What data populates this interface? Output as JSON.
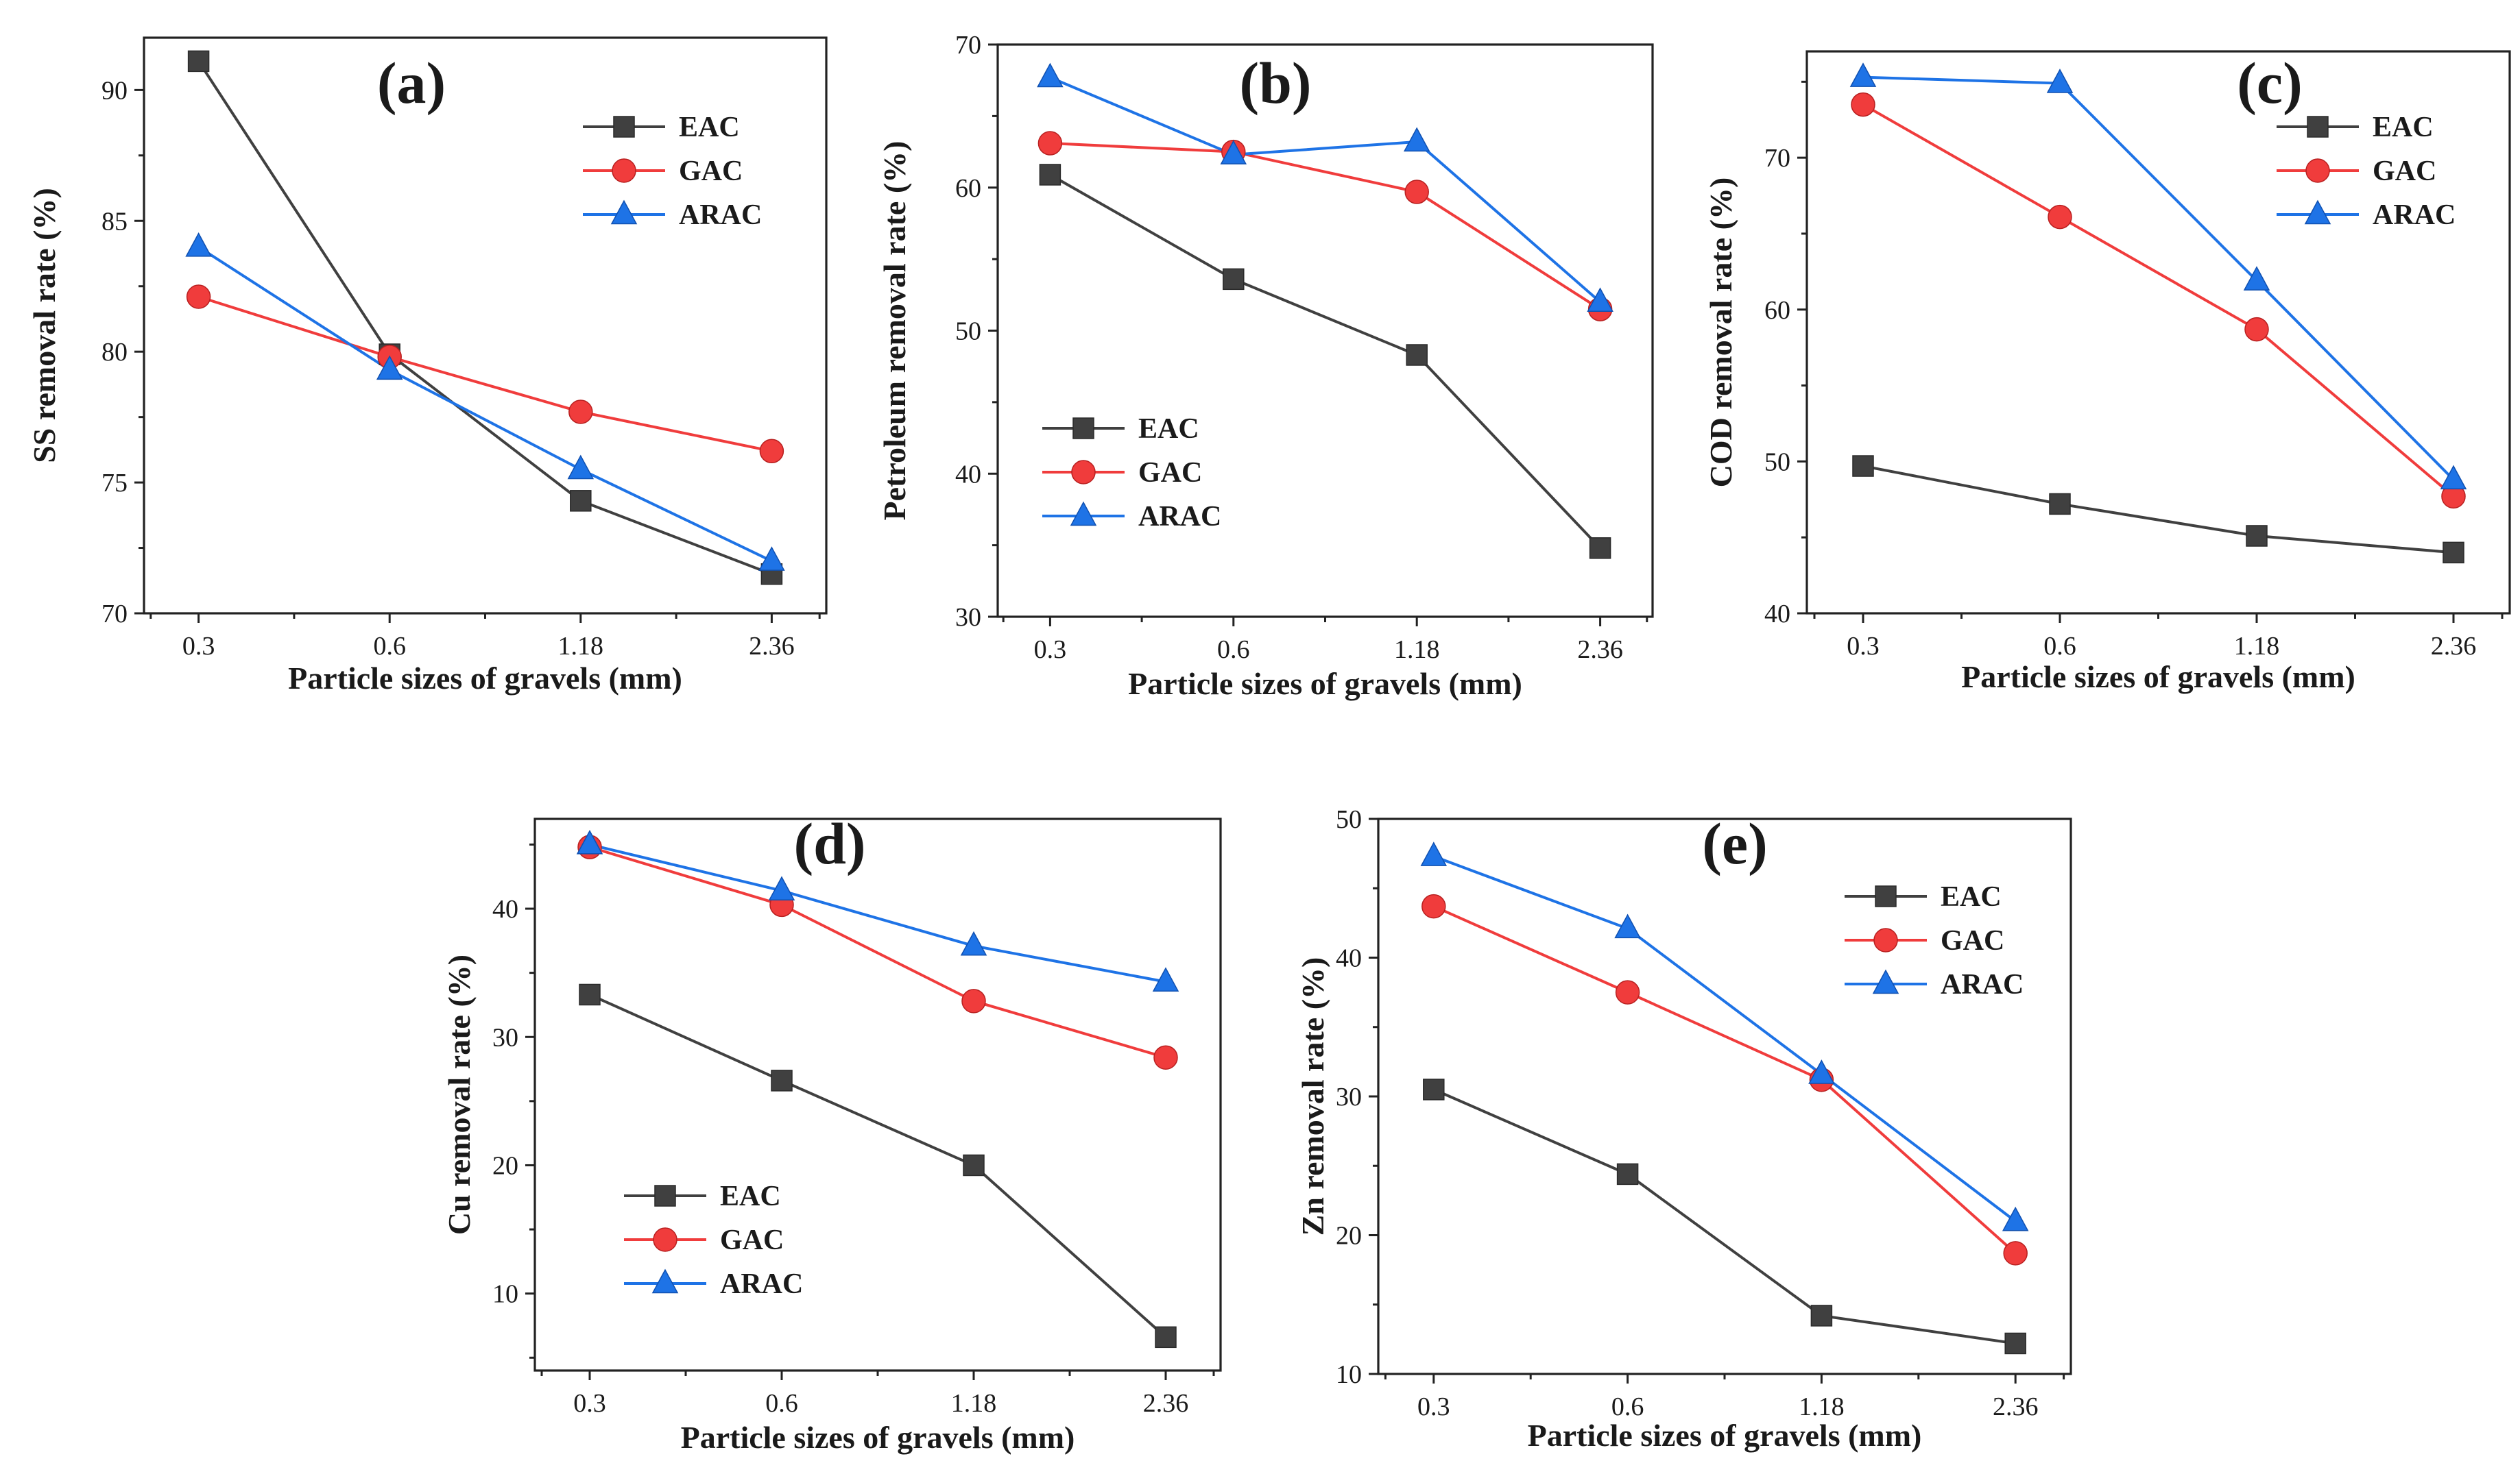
{
  "figure": {
    "colors": {
      "EAC": "#404040",
      "GAC": "#f03c3c",
      "ARAC": "#1e73e6"
    },
    "marker_names": {
      "EAC": "square-marker-icon",
      "GAC": "circle-marker-icon",
      "ARAC": "triangle-marker-icon"
    }
  },
  "chart_data": [
    {
      "type": "line",
      "id": "a",
      "panel_label": "(a)",
      "xlabel": "Particle sizes of gravels (mm)",
      "ylabel": "SS removal rate (%)",
      "categories": [
        "0.3",
        "0.6",
        "1.18",
        "2.36"
      ],
      "ylim": [
        70,
        92
      ],
      "yticks": [
        70,
        75,
        80,
        85,
        90
      ],
      "legend_position": "top-right",
      "series": [
        {
          "name": "EAC",
          "values": [
            91.1,
            79.9,
            74.3,
            71.5
          ]
        },
        {
          "name": "GAC",
          "values": [
            82.1,
            79.8,
            77.7,
            76.2
          ]
        },
        {
          "name": "ARAC",
          "values": [
            84.0,
            79.3,
            75.5,
            72.0
          ]
        }
      ]
    },
    {
      "type": "line",
      "id": "b",
      "panel_label": "(b)",
      "xlabel": "Particle sizes of gravels (mm)",
      "ylabel": "Petroleum removal rate (%)",
      "categories": [
        "0.3",
        "0.6",
        "1.18",
        "2.36"
      ],
      "ylim": [
        30,
        70
      ],
      "yticks": [
        30,
        40,
        50,
        60,
        70
      ],
      "legend_position": "bottom-left",
      "series": [
        {
          "name": "EAC",
          "values": [
            60.9,
            53.6,
            48.3,
            34.8
          ]
        },
        {
          "name": "GAC",
          "values": [
            63.1,
            62.5,
            59.7,
            51.5
          ]
        },
        {
          "name": "ARAC",
          "values": [
            67.7,
            62.3,
            63.2,
            52.0
          ]
        }
      ]
    },
    {
      "type": "line",
      "id": "c",
      "panel_label": "(c)",
      "xlabel": "Particle sizes of gravels (mm)",
      "ylabel": "COD removal rate (%)",
      "categories": [
        "0.3",
        "0.6",
        "1.18",
        "2.36"
      ],
      "ylim": [
        40,
        77
      ],
      "yticks": [
        40,
        50,
        60,
        70
      ],
      "legend_position": "top-right",
      "series": [
        {
          "name": "EAC",
          "values": [
            49.7,
            47.2,
            45.1,
            44.0
          ]
        },
        {
          "name": "GAC",
          "values": [
            73.5,
            66.1,
            58.7,
            47.7
          ]
        },
        {
          "name": "ARAC",
          "values": [
            75.3,
            74.9,
            61.9,
            48.8
          ]
        }
      ]
    },
    {
      "type": "line",
      "id": "d",
      "panel_label": "(d)",
      "xlabel": "Particle sizes of gravels (mm)",
      "ylabel": "Cu removal rate (%)",
      "categories": [
        "0.3",
        "0.6",
        "1.18",
        "2.36"
      ],
      "ylim": [
        4,
        47
      ],
      "yticks": [
        10,
        20,
        30,
        40
      ],
      "legend_position": "bottom-left",
      "series": [
        {
          "name": "EAC",
          "values": [
            33.3,
            26.6,
            20.0,
            6.6
          ]
        },
        {
          "name": "GAC",
          "values": [
            44.8,
            40.3,
            32.8,
            28.4
          ]
        },
        {
          "name": "ARAC",
          "values": [
            45.0,
            41.4,
            37.1,
            34.3
          ]
        }
      ]
    },
    {
      "type": "line",
      "id": "e",
      "panel_label": "(e)",
      "xlabel": "Particle sizes of gravels (mm)",
      "ylabel": "Zn removal rate (%)",
      "categories": [
        "0.3",
        "0.6",
        "1.18",
        "2.36"
      ],
      "ylim": [
        10,
        50
      ],
      "yticks": [
        10,
        20,
        30,
        40,
        50
      ],
      "legend_position": "top-right",
      "series": [
        {
          "name": "EAC",
          "values": [
            30.5,
            24.4,
            14.2,
            12.2
          ]
        },
        {
          "name": "GAC",
          "values": [
            43.7,
            37.5,
            31.2,
            18.7
          ]
        },
        {
          "name": "ARAC",
          "values": [
            47.3,
            42.1,
            31.6,
            21.0
          ]
        }
      ]
    }
  ]
}
